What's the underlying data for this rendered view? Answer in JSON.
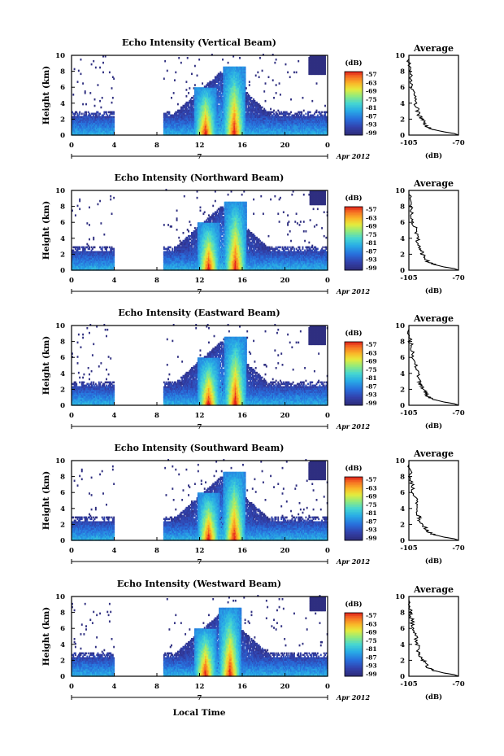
{
  "figure": {
    "xlabel": "Local Time",
    "date_label": "Apr 2012",
    "day_label": "7",
    "colorbar_unit": "(dB)"
  },
  "chart_data": [
    {
      "type": "heatmap",
      "title": "Echo Intensity (Vertical Beam)",
      "ylabel": "Height (km)",
      "xlabel": "Local Time",
      "x_ticks": [
        "0",
        "4",
        "8",
        "12",
        "16",
        "20",
        "0"
      ],
      "y_ticks": [
        "0",
        "2",
        "4",
        "6",
        "8",
        "10"
      ],
      "xlim": [
        0,
        24
      ],
      "ylim": [
        0,
        10
      ],
      "colorbar": {
        "unit": "(dB)",
        "ticks": [
          -57,
          -63,
          -69,
          -75,
          -81,
          -87,
          -93,
          -99
        ]
      },
      "features": {
        "data_gaps_hours": [
          [
            4,
            8.5
          ]
        ],
        "strong_echo_columns_hours": [
          12.5,
          15.2
        ],
        "boundary_layer_top_km": 3
      }
    },
    {
      "type": "heatmap",
      "title": "Echo Intensity (Northward Beam)",
      "ylabel": "Height (km)",
      "xlabel": "Local Time",
      "x_ticks": [
        "0",
        "4",
        "8",
        "12",
        "16",
        "20",
        "0"
      ],
      "y_ticks": [
        "0",
        "2",
        "4",
        "6",
        "8",
        "10"
      ],
      "xlim": [
        0,
        24
      ],
      "ylim": [
        0,
        10
      ],
      "colorbar": {
        "unit": "(dB)",
        "ticks": [
          -57,
          -63,
          -69,
          -75,
          -81,
          -87,
          -93,
          -99
        ]
      },
      "features": {
        "data_gaps_hours": [
          [
            4,
            8.5
          ]
        ],
        "strong_echo_columns_hours": [
          12.8,
          15.3
        ],
        "boundary_layer_top_km": 3
      }
    },
    {
      "type": "heatmap",
      "title": "Echo Intensity (Eastward Beam)",
      "ylabel": "Height (km)",
      "xlabel": "Local Time",
      "x_ticks": [
        "0",
        "4",
        "8",
        "12",
        "16",
        "20",
        "0"
      ],
      "y_ticks": [
        "0",
        "2",
        "4",
        "6",
        "8",
        "10"
      ],
      "xlim": [
        0,
        24
      ],
      "ylim": [
        0,
        10
      ],
      "colorbar": {
        "unit": "(dB)",
        "ticks": [
          -57,
          -63,
          -69,
          -75,
          -81,
          -87,
          -93,
          -99
        ]
      },
      "features": {
        "data_gaps_hours": [
          [
            4,
            8.5
          ]
        ],
        "strong_echo_columns_hours": [
          12.8,
          15.3
        ],
        "boundary_layer_top_km": 3
      }
    },
    {
      "type": "heatmap",
      "title": "Echo Intensity (Southward Beam)",
      "ylabel": "Height (km)",
      "xlabel": "Local Time",
      "x_ticks": [
        "0",
        "4",
        "8",
        "12",
        "16",
        "20",
        "0"
      ],
      "y_ticks": [
        "0",
        "2",
        "4",
        "6",
        "8",
        "10"
      ],
      "xlim": [
        0,
        24
      ],
      "ylim": [
        0,
        10
      ],
      "colorbar": {
        "unit": "(dB)",
        "ticks": [
          -57,
          -63,
          -69,
          -75,
          -81,
          -87,
          -93,
          -99
        ]
      },
      "features": {
        "data_gaps_hours": [
          [
            4,
            8.5
          ]
        ],
        "strong_echo_columns_hours": [
          12.8,
          15.2
        ],
        "boundary_layer_top_km": 3
      }
    },
    {
      "type": "heatmap",
      "title": "Echo Intensity (Westward Beam)",
      "ylabel": "Height (km)",
      "xlabel": "Local Time",
      "x_ticks": [
        "0",
        "4",
        "8",
        "12",
        "16",
        "20",
        "0"
      ],
      "y_ticks": [
        "0",
        "2",
        "4",
        "6",
        "8",
        "10"
      ],
      "xlim": [
        0,
        24
      ],
      "ylim": [
        0,
        10
      ],
      "colorbar": {
        "unit": "(dB)",
        "ticks": [
          -57,
          -63,
          -69,
          -75,
          -81,
          -87,
          -93,
          -99
        ]
      },
      "features": {
        "data_gaps_hours": [
          [
            4,
            8.5
          ]
        ],
        "strong_echo_columns_hours": [
          12.5,
          14.8
        ],
        "boundary_layer_top_km": 3
      }
    },
    {
      "type": "line",
      "title": "Average",
      "xlabel": "(dB)",
      "ylabel": "",
      "x_ticks": [
        "-105",
        "-70"
      ],
      "y_ticks": [
        "0",
        "2",
        "4",
        "6",
        "8",
        "10"
      ],
      "xlim": [
        -105,
        -70
      ],
      "ylim": [
        0,
        10
      ],
      "series": [
        {
          "x": [
            -70,
            -73,
            -80,
            -88,
            -92,
            -94,
            -96,
            -98,
            -99,
            -100,
            -101,
            -103,
            -104,
            -104,
            -105
          ],
          "y": [
            0,
            0.2,
            0.4,
            0.7,
            1.0,
            1.5,
            2.0,
            2.5,
            3.0,
            4.0,
            5.0,
            6.0,
            7.0,
            8.0,
            9.5
          ]
        }
      ]
    },
    {
      "type": "line",
      "title": "Average",
      "xlabel": "(dB)",
      "ylabel": "",
      "x_ticks": [
        "-105",
        "-70"
      ],
      "y_ticks": [
        "0",
        "2",
        "4",
        "6",
        "8",
        "10"
      ],
      "xlim": [
        -105,
        -70
      ],
      "ylim": [
        0,
        10
      ],
      "series": [
        {
          "x": [
            -70,
            -73,
            -80,
            -87,
            -91,
            -93,
            -95,
            -97,
            -98,
            -99,
            -100,
            -102,
            -103,
            -104,
            -105
          ],
          "y": [
            0,
            0.2,
            0.4,
            0.7,
            1.0,
            1.5,
            2.0,
            2.5,
            3.0,
            4.0,
            5.0,
            6.0,
            7.0,
            8.0,
            9.5
          ]
        }
      ]
    },
    {
      "type": "line",
      "title": "Average",
      "xlabel": "(dB)",
      "ylabel": "",
      "x_ticks": [
        "-105",
        "-70"
      ],
      "y_ticks": [
        "0",
        "2",
        "4",
        "6",
        "8",
        "10"
      ],
      "xlim": [
        -105,
        -70
      ],
      "ylim": [
        0,
        10
      ],
      "series": [
        {
          "x": [
            -70,
            -73,
            -80,
            -87,
            -91,
            -93,
            -95,
            -97,
            -98,
            -99,
            -100,
            -102,
            -103,
            -104,
            -105
          ],
          "y": [
            0,
            0.2,
            0.4,
            0.7,
            1.0,
            1.5,
            2.0,
            2.5,
            3.0,
            4.0,
            5.0,
            6.0,
            7.0,
            8.0,
            9.5
          ]
        }
      ]
    },
    {
      "type": "line",
      "title": "Average",
      "xlabel": "(dB)",
      "ylabel": "",
      "x_ticks": [
        "-105",
        "-70"
      ],
      "y_ticks": [
        "0",
        "2",
        "4",
        "6",
        "8",
        "10"
      ],
      "xlim": [
        -105,
        -70
      ],
      "ylim": [
        0,
        10
      ],
      "series": [
        {
          "x": [
            -70,
            -73,
            -80,
            -87,
            -91,
            -93,
            -95,
            -97,
            -98,
            -99,
            -100,
            -102,
            -103,
            -104,
            -105
          ],
          "y": [
            0,
            0.2,
            0.4,
            0.7,
            1.0,
            1.5,
            2.0,
            2.5,
            3.0,
            4.0,
            5.0,
            6.0,
            7.0,
            8.0,
            9.5
          ]
        }
      ]
    },
    {
      "type": "line",
      "title": "Average",
      "xlabel": "(dB)",
      "ylabel": "",
      "x_ticks": [
        "-105",
        "-70"
      ],
      "y_ticks": [
        "0",
        "2",
        "4",
        "6",
        "8",
        "10"
      ],
      "xlim": [
        -105,
        -70
      ],
      "ylim": [
        0,
        10
      ],
      "series": [
        {
          "x": [
            -70,
            -73,
            -80,
            -87,
            -91,
            -93,
            -95,
            -97,
            -98,
            -99,
            -100,
            -102,
            -103,
            -104,
            -105
          ],
          "y": [
            0,
            0.2,
            0.4,
            0.7,
            1.0,
            1.5,
            2.0,
            2.5,
            3.0,
            4.0,
            5.0,
            6.0,
            7.0,
            8.0,
            9.5
          ]
        }
      ]
    }
  ]
}
